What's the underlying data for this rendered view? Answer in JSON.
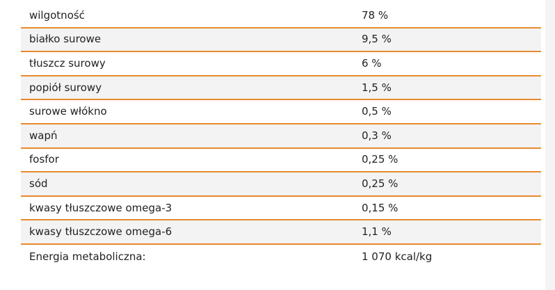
{
  "table": {
    "rows": [
      {
        "label": "wilgotność",
        "value": "78 %"
      },
      {
        "label": "białko surowe",
        "value": "9,5 %"
      },
      {
        "label": "tłuszcz surowy",
        "value": "6 %"
      },
      {
        "label": "popiół surowy",
        "value": "1,5 %"
      },
      {
        "label": "surowe włókno",
        "value": "0,5 %"
      },
      {
        "label": "wapń",
        "value": "0,3 %"
      },
      {
        "label": "fosfor",
        "value": "0,25 %"
      },
      {
        "label": "sód",
        "value": "0,25 %"
      },
      {
        "label": "kwasy tłuszczowe omega-3",
        "value": "0,15 %"
      },
      {
        "label": "kwasy tłuszczowe omega-6",
        "value": "1,1 %"
      },
      {
        "label": "Energia metaboliczna:",
        "value": "1 070 kcal/kg"
      }
    ]
  },
  "colors": {
    "row_divider": "#e68a2e",
    "alt_row_background": "#f3f3f3",
    "text": "#222222"
  }
}
